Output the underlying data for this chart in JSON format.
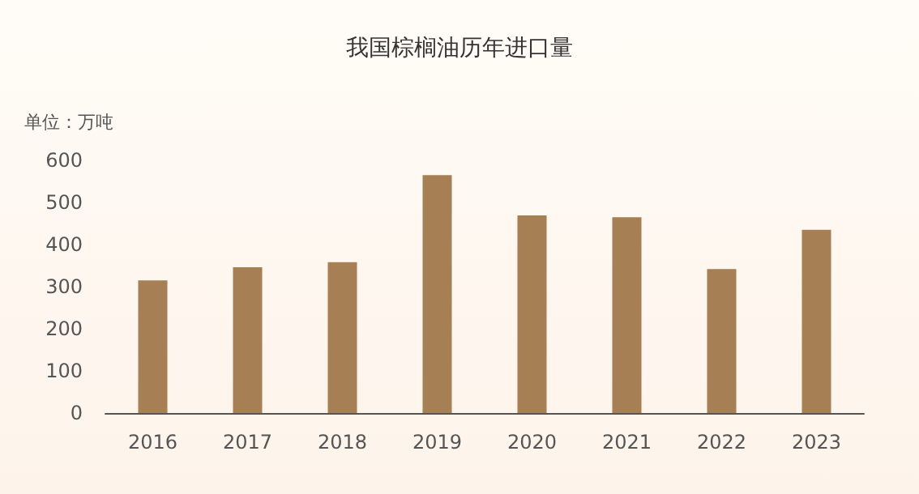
{
  "chart_data": {
    "type": "bar",
    "title": "我国棕榈油历年进口量",
    "ylabel": "单位：万吨",
    "categories": [
      "2016",
      "2017",
      "2018",
      "2019",
      "2020",
      "2021",
      "2022",
      "2023"
    ],
    "values": [
      315,
      346,
      358,
      565,
      469,
      465,
      342,
      435
    ],
    "color": "#a67f55",
    "ylim": [
      0,
      600
    ],
    "yticks": [
      0,
      100,
      200,
      300,
      400,
      500,
      600
    ],
    "grid": false
  }
}
